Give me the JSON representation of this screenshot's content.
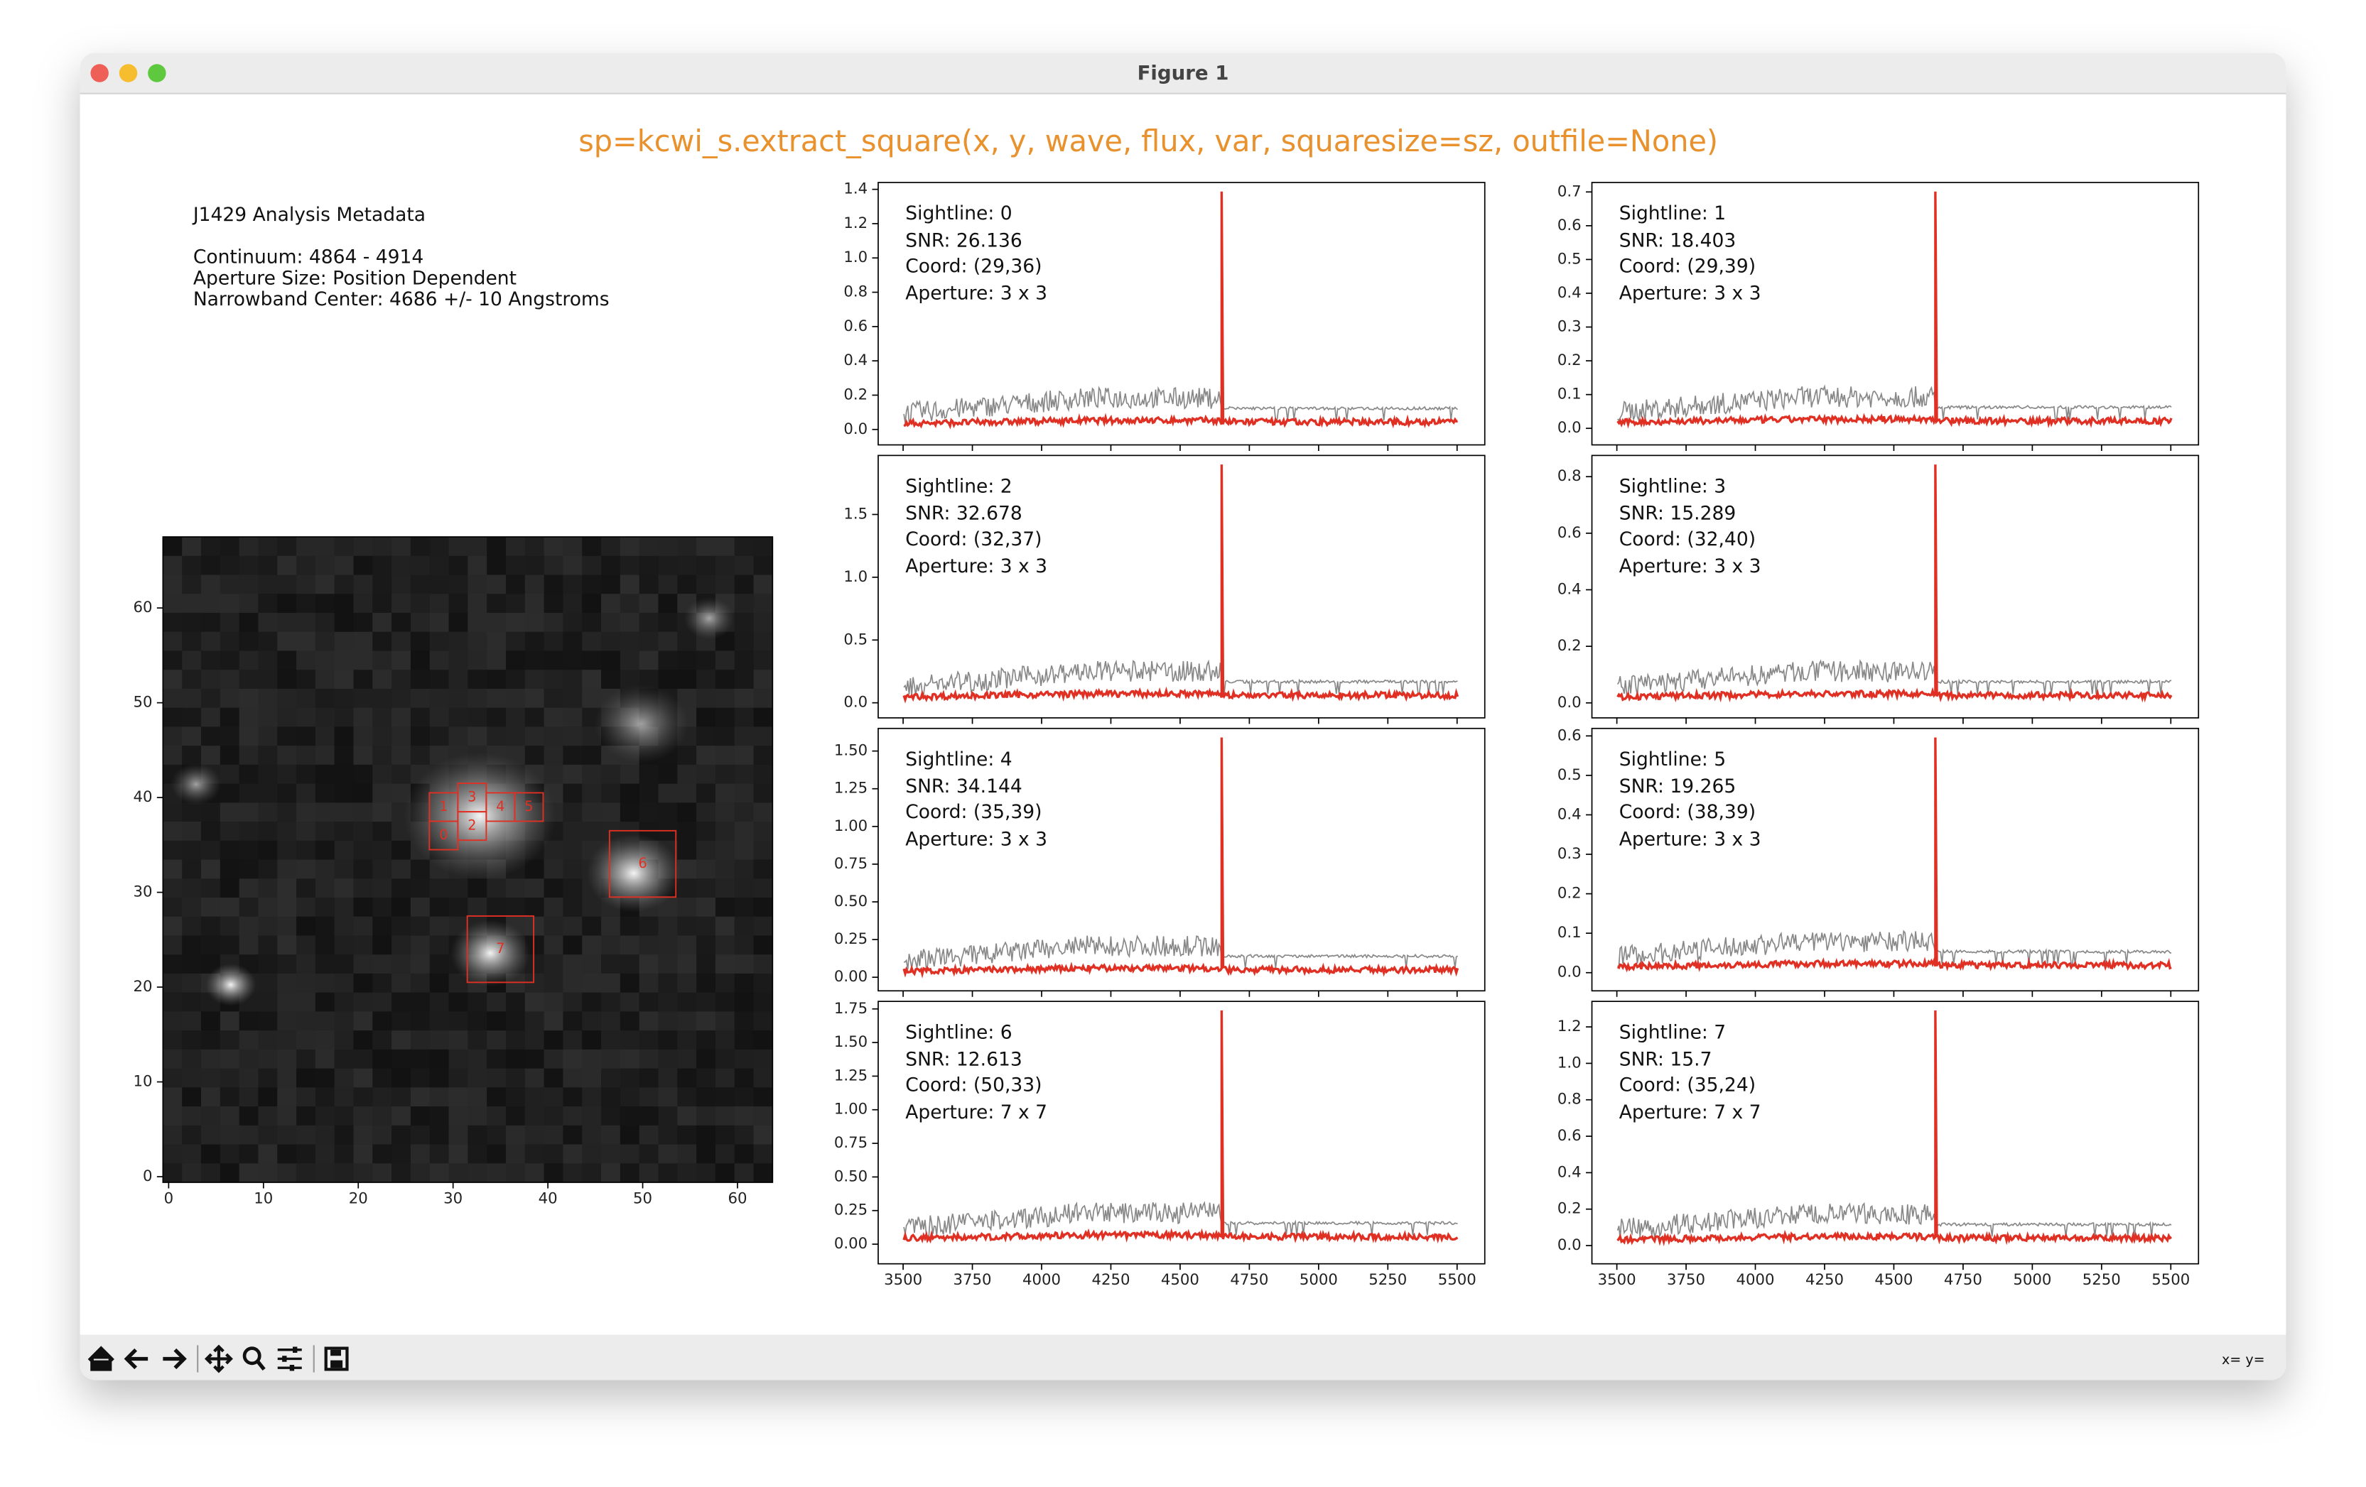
{
  "window": {
    "title": "Figure 1",
    "status": "x= y="
  },
  "figure_title": "sp=kcwi_s.extract_square(x, y, wave, flux, var, squaresize=sz, outfile=None)",
  "metadata": {
    "heading": "J1429 Analysis Metadata",
    "lines": [
      "Continuum: 4864 - 4914",
      "Aperture Size: Position Dependent",
      "Narrowband Center: 4686 +/- 10 Angstroms"
    ]
  },
  "image": {
    "xlim": [
      -0.6,
      63.7
    ],
    "ylim": [
      -0.6,
      67.5
    ],
    "xticks": [
      0,
      10,
      20,
      30,
      40,
      50,
      60
    ],
    "yticks": [
      0,
      10,
      20,
      30,
      40,
      50,
      60
    ]
  },
  "spectra": {
    "xlim": [
      3410,
      5600
    ],
    "xticks": [
      3500,
      3750,
      4000,
      4250,
      4500,
      4750,
      5000,
      5250,
      5500
    ],
    "panels": [
      {
        "sightline": "Sightline: 0",
        "snr": "SNR: 26.136",
        "coord": "Coord: (29,36)",
        "aperture": "Aperture: 3 x 3",
        "box_label": "0",
        "ylim": [
          -0.09,
          1.44
        ],
        "yticks": [
          {
            "value": 0,
            "label": "0.0"
          },
          {
            "value": 0.2,
            "label": "0.2"
          },
          {
            "value": 0.4,
            "label": "0.4"
          },
          {
            "value": 0.6,
            "label": "0.6"
          },
          {
            "value": 0.8,
            "label": "0.8"
          },
          {
            "value": 1,
            "label": "1.0"
          },
          {
            "value": 1.2,
            "label": "1.2"
          },
          {
            "value": 1.4,
            "label": "1.4"
          }
        ]
      },
      {
        "sightline": "Sightline: 1",
        "snr": "SNR: 18.403",
        "coord": "Coord: (29,39)",
        "aperture": "Aperture: 3 x 3",
        "box_label": "1",
        "ylim": [
          -0.049,
          0.728
        ],
        "yticks": [
          {
            "value": 0,
            "label": "0.0"
          },
          0.1,
          0.2,
          0.3,
          0.4,
          0.5,
          0.6,
          0.7
        ]
      },
      {
        "sightline": "Sightline: 2",
        "snr": "SNR: 32.678",
        "coord": "Coord: (32,37)",
        "aperture": "Aperture: 3 x 3",
        "box_label": "2",
        "ylim": [
          -0.12,
          1.97
        ],
        "yticks": [
          {
            "value": 0,
            "label": "0.0"
          },
          0.5,
          {
            "value": 1,
            "label": "1.0"
          },
          1.5
        ]
      },
      {
        "sightline": "Sightline: 3",
        "snr": "SNR: 15.289",
        "coord": "Coord: (32,40)",
        "aperture": "Aperture: 3 x 3",
        "box_label": "3",
        "ylim": [
          -0.053,
          0.875
        ],
        "yticks": [
          {
            "value": 0,
            "label": "0.0"
          },
          0.2,
          0.4,
          0.6,
          0.8
        ]
      },
      {
        "sightline": "Sightline: 4",
        "snr": "SNR: 34.144",
        "coord": "Coord: (35,39)",
        "aperture": "Aperture: 3 x 3",
        "box_label": "4",
        "ylim": [
          -0.09,
          1.65
        ],
        "yticks": [
          {
            "value": 0,
            "label": "0.00"
          },
          0.25,
          {
            "value": 0.5,
            "label": "0.50"
          },
          0.75,
          {
            "value": 1,
            "label": "1.00"
          },
          1.25,
          {
            "value": 1.5,
            "label": "1.50"
          }
        ]
      },
      {
        "sightline": "Sightline: 5",
        "snr": "SNR: 19.265",
        "coord": "Coord: (38,39)",
        "aperture": "Aperture: 3 x 3",
        "box_label": "5",
        "ylim": [
          -0.046,
          0.619
        ],
        "yticks": [
          {
            "value": 0,
            "label": "0.0"
          },
          0.1,
          0.2,
          0.3,
          0.4,
          0.5,
          0.6
        ]
      },
      {
        "sightline": "Sightline: 6",
        "snr": "SNR: 12.613",
        "coord": "Coord: (50,33)",
        "aperture": "Aperture: 7 x 7",
        "box_label": "6",
        "ylim": [
          -0.146,
          1.806
        ],
        "yticks": [
          {
            "value": 0,
            "label": "0.00"
          },
          0.25,
          {
            "value": 0.5,
            "label": "0.50"
          },
          0.75,
          {
            "value": 1,
            "label": "1.00"
          },
          1.25,
          {
            "value": 1.5,
            "label": "1.50"
          },
          1.75
        ]
      },
      {
        "sightline": "Sightline: 7",
        "snr": "SNR: 15.7",
        "coord": "Coord: (35,24)",
        "aperture": "Aperture: 7 x 7",
        "box_label": "7",
        "ylim": [
          -0.1,
          1.34
        ],
        "yticks": [
          {
            "value": 0,
            "label": "0.0"
          },
          0.2,
          0.4,
          0.6,
          0.8,
          {
            "value": 1,
            "label": "1.0"
          },
          1.2
        ]
      }
    ]
  }
}
